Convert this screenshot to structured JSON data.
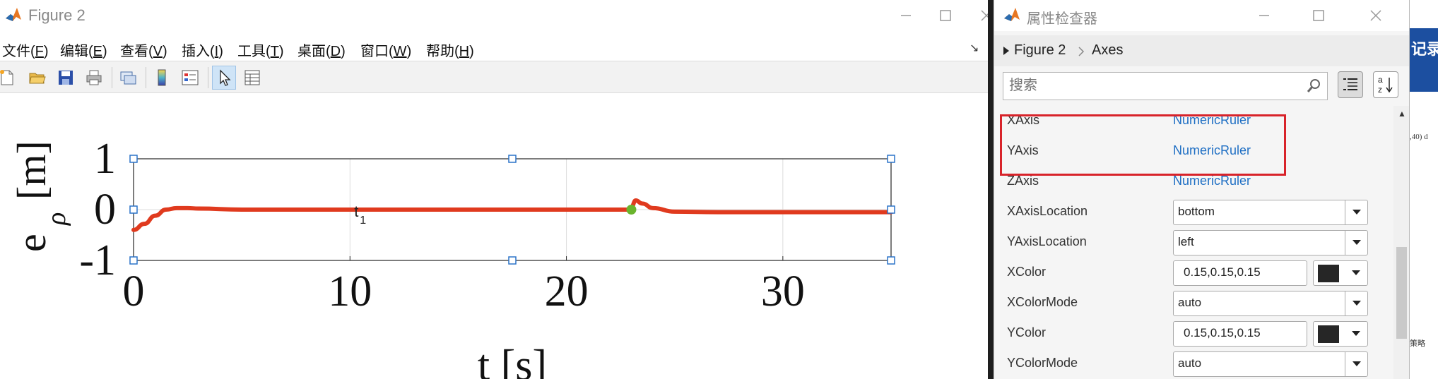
{
  "figure_window": {
    "title": "Figure 2",
    "menu": [
      "文件(F)",
      "编辑(E)",
      "查看(V)",
      "插入(I)",
      "工具(T)",
      "桌面(D)",
      "窗口(W)",
      "帮助(H)"
    ],
    "menu_underline": [
      "F",
      "E",
      "V",
      "I",
      "T",
      "D",
      "W",
      "H"
    ]
  },
  "plot": {
    "ylabel": "e",
    "ylabel_sub": "ρ",
    "ylabel_unit": "[m]",
    "xlabel": "t [s]",
    "annotation": "t",
    "annotation_sub": "1"
  },
  "chart_data": {
    "type": "line",
    "xlim": [
      0,
      35
    ],
    "ylim": [
      -1,
      1
    ],
    "x_ticks": [
      0,
      10,
      20,
      30
    ],
    "y_ticks": [
      1,
      0,
      -1
    ],
    "grid": true,
    "series": [
      {
        "color": "#e03a1e",
        "x": [
          0,
          0.5,
          1,
          1.5,
          2,
          2.5,
          3,
          5,
          10,
          15,
          20,
          22.9,
          23.0,
          23.2,
          23.5,
          24,
          25,
          27,
          30,
          35
        ],
        "y": [
          -0.4,
          -0.28,
          -0.12,
          0.0,
          0.03,
          0.03,
          0.02,
          0.0,
          0.0,
          0.0,
          0.0,
          0.0,
          0.05,
          0.18,
          0.12,
          0.03,
          -0.04,
          -0.05,
          -0.05,
          -0.05
        ]
      }
    ],
    "marker": {
      "x": 23.0,
      "y": 0.0,
      "color": "#6ab42d"
    },
    "annotation_x": 10
  },
  "inspector": {
    "title": "属性检查器",
    "breadcrumb": [
      "Figure 2",
      "Axes"
    ],
    "search_placeholder": "搜索",
    "properties": [
      {
        "name": "XAxis",
        "kind": "link",
        "value": "NumericRuler"
      },
      {
        "name": "YAxis",
        "kind": "link",
        "value": "NumericRuler"
      },
      {
        "name": "ZAxis",
        "kind": "link",
        "value": "NumericRuler"
      },
      {
        "name": "XAxisLocation",
        "kind": "dropdown",
        "value": "bottom"
      },
      {
        "name": "YAxisLocation",
        "kind": "dropdown",
        "value": "left"
      },
      {
        "name": "XColor",
        "kind": "color",
        "value": "0.15,0.15,0.15"
      },
      {
        "name": "XColorMode",
        "kind": "dropdown",
        "value": "auto"
      },
      {
        "name": "YColor",
        "kind": "color",
        "value": "0.15,0.15,0.15"
      },
      {
        "name": "YColorMode",
        "kind": "dropdown",
        "value": "auto"
      }
    ]
  },
  "background": {
    "heading": "记录",
    "note1": ",40)",
    "note1b": "d",
    "note2": "策略"
  }
}
